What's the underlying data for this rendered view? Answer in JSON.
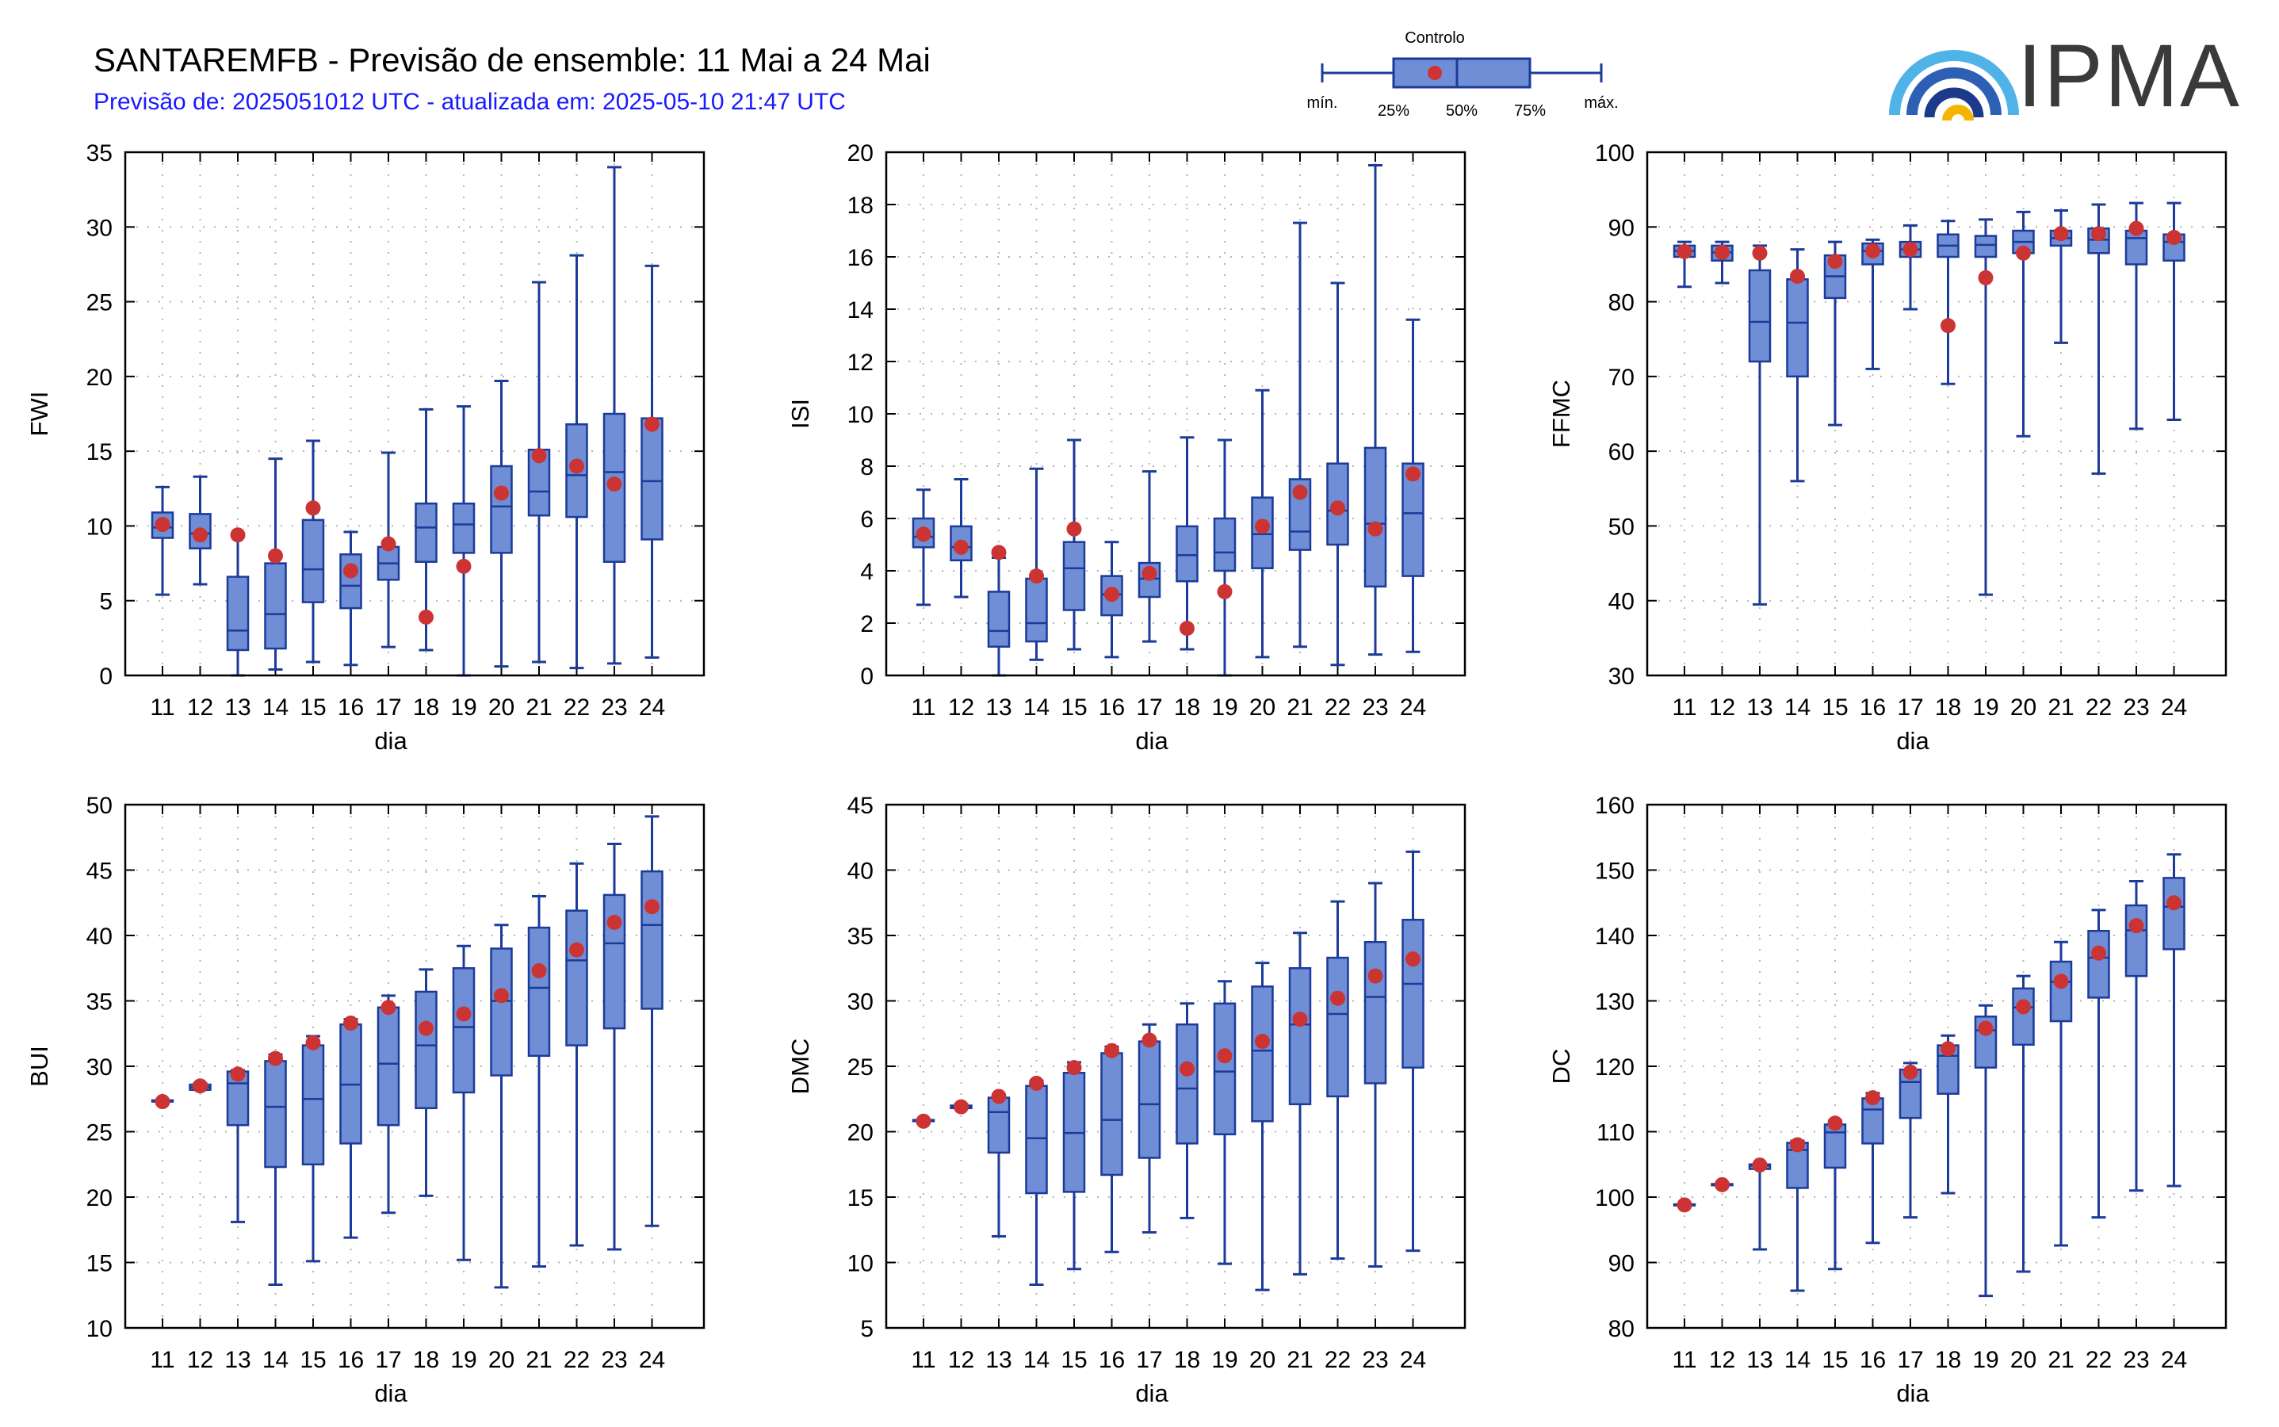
{
  "header": {
    "title": "SANTAREMFB - Previsão de ensemble: 11 Mai a 24 Mai",
    "subtitle": "Previsão de: 2025051012 UTC - atualizada em: 2025-05-10 21:47 UTC"
  },
  "logo": {
    "text": "IPMA"
  },
  "legend": {
    "title": "Controlo",
    "labels": {
      "min": "mín.",
      "q25": "25%",
      "q50": "50%",
      "q75": "75%",
      "max": "máx."
    }
  },
  "colors": {
    "box_fill": "#6f8ed6",
    "box_stroke": "#1c3a99",
    "control": "#cc3333",
    "grid": "#b4b4b4",
    "title": "#000000",
    "subtitle": "#1a1aff"
  },
  "chart_data": [
    {
      "type": "boxplot",
      "ylabel": "FWI",
      "xlabel": "dia",
      "ylim": [
        0,
        35
      ],
      "yticks": [
        0,
        5,
        10,
        15,
        20,
        25,
        30,
        35
      ],
      "categories": [
        "11",
        "12",
        "13",
        "14",
        "15",
        "16",
        "17",
        "18",
        "19",
        "20",
        "21",
        "22",
        "23",
        "24"
      ],
      "min": [
        5.4,
        6.1,
        0,
        0.4,
        0.9,
        0.7,
        1.9,
        1.7,
        0,
        0.6,
        0.9,
        0.5,
        0.8,
        1.2
      ],
      "q25": [
        9.2,
        8.5,
        1.7,
        1.8,
        4.9,
        4.5,
        6.4,
        7.6,
        8.2,
        8.2,
        10.7,
        10.6,
        7.6,
        9.1
      ],
      "median": [
        9.9,
        9.5,
        3.0,
        4.1,
        7.1,
        6.0,
        7.5,
        9.9,
        10.1,
        11.3,
        12.3,
        13.4,
        13.6,
        13.0
      ],
      "q75": [
        10.9,
        10.8,
        6.6,
        7.5,
        10.4,
        8.1,
        8.6,
        11.5,
        11.5,
        14.0,
        15.1,
        16.8,
        17.5,
        17.2
      ],
      "max": [
        12.6,
        13.3,
        9.3,
        14.5,
        15.7,
        9.6,
        14.9,
        17.8,
        18.0,
        19.7,
        26.3,
        28.1,
        34.0,
        27.4
      ],
      "control": [
        10.1,
        9.4,
        9.4,
        8.0,
        11.2,
        7.0,
        8.8,
        3.9,
        7.3,
        12.2,
        14.7,
        14.0,
        12.8,
        16.8
      ]
    },
    {
      "type": "boxplot",
      "ylabel": "ISI",
      "xlabel": "dia",
      "ylim": [
        0,
        20
      ],
      "yticks": [
        0,
        2,
        4,
        6,
        8,
        10,
        12,
        14,
        16,
        18,
        20
      ],
      "categories": [
        "11",
        "12",
        "13",
        "14",
        "15",
        "16",
        "17",
        "18",
        "19",
        "20",
        "21",
        "22",
        "23",
        "24"
      ],
      "min": [
        2.7,
        3.0,
        0,
        0.6,
        1.0,
        0.7,
        1.3,
        1.0,
        0,
        0.7,
        1.1,
        0.4,
        0.8,
        0.9
      ],
      "q25": [
        4.9,
        4.4,
        1.1,
        1.3,
        2.5,
        2.3,
        3.0,
        3.6,
        4.0,
        4.1,
        4.8,
        5.0,
        3.4,
        3.8
      ],
      "median": [
        5.3,
        4.9,
        1.7,
        2.0,
        4.1,
        3.1,
        3.7,
        4.6,
        4.7,
        5.4,
        5.5,
        6.3,
        5.8,
        6.2
      ],
      "q75": [
        6.0,
        5.7,
        3.2,
        3.7,
        5.1,
        3.8,
        4.3,
        5.7,
        6.0,
        6.8,
        7.5,
        8.1,
        8.7,
        8.1
      ],
      "max": [
        7.1,
        7.5,
        4.5,
        7.9,
        9.0,
        5.1,
        7.8,
        9.1,
        9.0,
        10.9,
        17.3,
        15.0,
        19.5,
        13.6
      ],
      "control": [
        5.4,
        4.9,
        4.7,
        3.8,
        5.6,
        3.1,
        3.9,
        1.8,
        3.2,
        5.7,
        7.0,
        6.4,
        5.6,
        7.7
      ]
    },
    {
      "type": "boxplot",
      "ylabel": "FFMC",
      "xlabel": "dia",
      "ylim": [
        30,
        100
      ],
      "yticks": [
        30,
        40,
        50,
        60,
        70,
        80,
        90,
        100
      ],
      "categories": [
        "11",
        "12",
        "13",
        "14",
        "15",
        "16",
        "17",
        "18",
        "19",
        "20",
        "21",
        "22",
        "23",
        "24"
      ],
      "min": [
        82,
        82.5,
        39.5,
        56,
        63.5,
        71,
        79,
        69,
        40.8,
        62,
        74.5,
        57,
        63,
        64.2
      ],
      "q25": [
        86,
        85.5,
        72,
        70,
        80.5,
        85,
        86,
        86,
        86,
        86.5,
        87.5,
        86.5,
        85,
        85.5
      ],
      "median": [
        86.8,
        86.6,
        77.3,
        77.2,
        83.4,
        86.8,
        87.0,
        87.5,
        87.6,
        88.0,
        88.5,
        88.3,
        88.5,
        88.0
      ],
      "q75": [
        87.5,
        87.5,
        84.2,
        83,
        86.2,
        87.8,
        88.0,
        89.0,
        88.8,
        89.5,
        89.5,
        89.8,
        89.5,
        89.0
      ],
      "max": [
        88,
        88,
        87.5,
        87,
        88,
        88.3,
        90.2,
        90.8,
        91,
        92,
        92.2,
        93,
        93.2,
        93.2
      ],
      "control": [
        86.7,
        86.6,
        86.5,
        83.4,
        85.4,
        86.8,
        87.0,
        76.8,
        83.2,
        86.5,
        89.1,
        89.1,
        89.8,
        88.6
      ]
    },
    {
      "type": "boxplot",
      "ylabel": "BUI",
      "xlabel": "dia",
      "ylim": [
        10,
        50
      ],
      "yticks": [
        10,
        15,
        20,
        25,
        30,
        35,
        40,
        45,
        50
      ],
      "categories": [
        "11",
        "12",
        "13",
        "14",
        "15",
        "16",
        "17",
        "18",
        "19",
        "20",
        "21",
        "22",
        "23",
        "24"
      ],
      "min": [
        27.3,
        28.2,
        18.1,
        13.3,
        15.1,
        16.9,
        18.8,
        20.1,
        15.2,
        13.1,
        14.7,
        16.3,
        16.0,
        17.8
      ],
      "q25": [
        27.3,
        28.2,
        25.5,
        22.3,
        22.5,
        24.1,
        25.5,
        26.8,
        28.0,
        29.3,
        30.8,
        31.6,
        32.9,
        34.4
      ],
      "median": [
        27.3,
        28.4,
        28.7,
        26.9,
        27.5,
        28.6,
        30.2,
        31.6,
        33.0,
        35.0,
        36.0,
        38.1,
        39.4,
        40.8
      ],
      "q75": [
        27.4,
        28.6,
        29.6,
        30.4,
        31.6,
        33.2,
        34.5,
        35.7,
        37.5,
        39.0,
        40.6,
        41.9,
        43.1,
        44.9
      ],
      "max": [
        27.4,
        28.7,
        29.7,
        30.9,
        32.3,
        33.6,
        35.4,
        37.4,
        39.2,
        40.8,
        43.0,
        45.5,
        47.0,
        49.1
      ],
      "control": [
        27.3,
        28.5,
        29.4,
        30.6,
        31.8,
        33.3,
        34.5,
        32.9,
        34.0,
        35.4,
        37.3,
        38.9,
        41.0,
        42.2
      ]
    },
    {
      "type": "boxplot",
      "ylabel": "DMC",
      "xlabel": "dia",
      "ylim": [
        5,
        45
      ],
      "yticks": [
        5,
        10,
        15,
        20,
        25,
        30,
        35,
        40,
        45
      ],
      "categories": [
        "11",
        "12",
        "13",
        "14",
        "15",
        "16",
        "17",
        "18",
        "19",
        "20",
        "21",
        "22",
        "23",
        "24"
      ],
      "min": [
        20.8,
        21.8,
        12.0,
        8.3,
        9.5,
        10.8,
        12.3,
        13.4,
        9.9,
        7.9,
        9.1,
        10.3,
        9.7,
        10.9
      ],
      "q25": [
        20.8,
        21.8,
        18.4,
        15.3,
        15.4,
        16.7,
        18.0,
        19.1,
        19.8,
        20.8,
        22.1,
        22.7,
        23.7,
        24.9
      ],
      "median": [
        20.8,
        21.9,
        21.5,
        19.5,
        19.9,
        20.9,
        22.1,
        23.3,
        24.6,
        26.2,
        28.2,
        29.0,
        30.3,
        31.3
      ],
      "q75": [
        20.9,
        22.0,
        22.6,
        23.5,
        24.5,
        26.0,
        26.9,
        28.2,
        29.8,
        31.1,
        32.5,
        33.3,
        34.5,
        36.2
      ],
      "max": [
        20.9,
        22.1,
        22.8,
        23.9,
        25.3,
        26.5,
        28.2,
        29.8,
        31.5,
        32.9,
        35.2,
        37.6,
        39.0,
        41.4
      ],
      "control": [
        20.8,
        21.9,
        22.7,
        23.7,
        24.9,
        26.2,
        27.0,
        24.8,
        25.8,
        26.9,
        28.6,
        30.2,
        31.9,
        33.2
      ]
    },
    {
      "type": "boxplot",
      "ylabel": "DC",
      "xlabel": "dia",
      "ylim": [
        80,
        160
      ],
      "yticks": [
        80,
        90,
        100,
        110,
        120,
        130,
        140,
        150,
        160
      ],
      "categories": [
        "11",
        "12",
        "13",
        "14",
        "15",
        "16",
        "17",
        "18",
        "19",
        "20",
        "21",
        "22",
        "23",
        "24"
      ],
      "min": [
        98.8,
        101.8,
        92.0,
        85.7,
        89.0,
        93.0,
        96.9,
        100.6,
        84.9,
        88.6,
        92.6,
        96.9,
        101.0,
        101.7
      ],
      "q25": [
        98.8,
        101.8,
        104.3,
        101.4,
        104.5,
        108.2,
        112.1,
        115.8,
        119.8,
        123.3,
        126.9,
        130.5,
        133.8,
        137.9
      ],
      "median": [
        98.8,
        101.9,
        104.8,
        107.2,
        109.9,
        113.4,
        117.6,
        121.6,
        125.5,
        129.0,
        132.9,
        136.6,
        140.8,
        144.4
      ],
      "q75": [
        98.9,
        102.0,
        105.0,
        108.3,
        111.1,
        115.1,
        119.5,
        123.2,
        127.6,
        131.9,
        136.0,
        140.7,
        144.6,
        148.8
      ],
      "max": [
        98.9,
        102.1,
        105.2,
        108.6,
        111.7,
        115.9,
        120.5,
        124.7,
        129.3,
        133.8,
        139.0,
        143.9,
        148.3,
        152.4
      ],
      "control": [
        98.8,
        101.9,
        104.9,
        108.0,
        111.3,
        115.2,
        119.1,
        122.7,
        125.8,
        129.1,
        133.0,
        137.3,
        141.5,
        145.0
      ]
    }
  ]
}
